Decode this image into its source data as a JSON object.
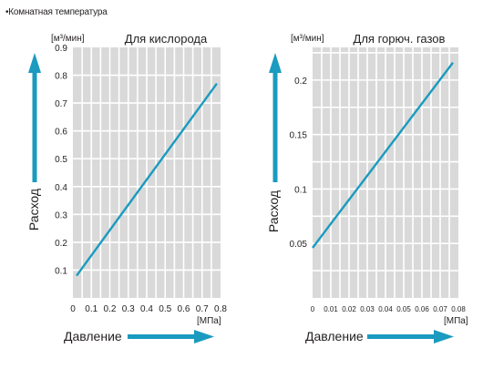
{
  "note": "•Комнатная температура",
  "chart_data": [
    {
      "type": "line",
      "title": "Для кислорода",
      "xlabel": "Давление",
      "ylabel": "Расход",
      "xunit": "[МПа]",
      "yunit": "[м³/мин]",
      "xlim": [
        0,
        0.8
      ],
      "ylim": [
        0,
        0.9
      ],
      "xticks": [
        "0",
        "0.1",
        "0.2",
        "0.3",
        "0.4",
        "0.5",
        "0.6",
        "0.7",
        "0.8"
      ],
      "yticks": [
        "0.1",
        "0.2",
        "0.3",
        "0.4",
        "0.5",
        "0.6",
        "0.7",
        "0.8",
        "0.9"
      ],
      "x_grid_step": 0.05,
      "y_grid_step": 0.1,
      "grid": true,
      "series": [
        {
          "x": [
            0.02,
            0.78
          ],
          "y": [
            0.08,
            0.77
          ]
        }
      ],
      "color": "#1a9bbf"
    },
    {
      "type": "line",
      "title": "Для горюч. газов",
      "xlabel": "Давление",
      "ylabel": "Расход",
      "xunit": "[МПа]",
      "yunit": "[м³/мин]",
      "xlim": [
        0,
        0.08
      ],
      "ylim": [
        0,
        0.23
      ],
      "xticks": [
        "0",
        "0.01",
        "0.02",
        "0.03",
        "0.04",
        "0.05",
        "0.06",
        "0.07",
        "0.08"
      ],
      "yticks": [
        "0.05",
        "0.1",
        "0.15",
        "0.2"
      ],
      "x_grid_step": 0.005,
      "y_grid_step": 0.025,
      "grid": true,
      "series": [
        {
          "x": [
            0.0,
            0.077
          ],
          "y": [
            0.046,
            0.216
          ]
        }
      ],
      "color": "#1a9bbf"
    }
  ]
}
